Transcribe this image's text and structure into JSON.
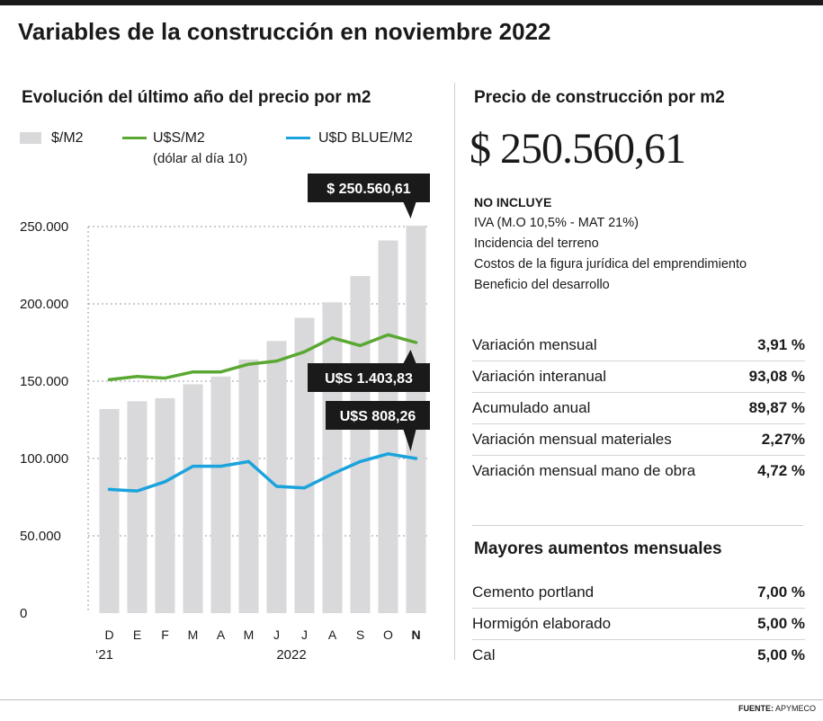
{
  "header": {
    "title": "Variables de la construcción en noviembre 2022"
  },
  "left": {
    "subtitle": "Evolución del último año del precio por m2",
    "legend": [
      {
        "label": "$/M2",
        "color": "#d9d9db"
      },
      {
        "label": "U$S/M2",
        "note": "(dólar al día 10)",
        "color": "#5aa832"
      },
      {
        "label": "U$D BLUE/M2",
        "color": "#1aa3dc"
      }
    ]
  },
  "chart_data": {
    "type": "bar",
    "categories": [
      "D",
      "E",
      "F",
      "M",
      "A",
      "M",
      "J",
      "J",
      "A",
      "S",
      "O",
      "N"
    ],
    "year_labels": [
      "‘21",
      "2022"
    ],
    "yticks": [
      "250.000",
      "200.000",
      "150.000",
      "100.000",
      "50.000",
      "0"
    ],
    "ylim": [
      0,
      250000
    ],
    "grid": true,
    "series": [
      {
        "name": "$/M2",
        "type": "bar",
        "color": "#d9d9db",
        "values": [
          132000,
          137000,
          139000,
          148000,
          153000,
          164000,
          176000,
          191000,
          201000,
          218000,
          241000,
          250560.61
        ]
      },
      {
        "name": "U$S/M2",
        "type": "line",
        "color": "#5aa832",
        "values": [
          151000,
          153000,
          152000,
          156000,
          156000,
          161000,
          163000,
          169000,
          178000,
          173000,
          180000,
          175000
        ]
      },
      {
        "name": "U$D BLUE/M2",
        "type": "line",
        "color": "#1aa3dc",
        "values": [
          80000,
          79000,
          85000,
          95000,
          95000,
          98000,
          82000,
          81000,
          90000,
          98000,
          103000,
          100000
        ]
      }
    ],
    "callouts": [
      {
        "text": "$ 250.560,61",
        "series": 0
      },
      {
        "text": "U$S 1.403,83",
        "series": 1
      },
      {
        "text": "U$S 808,26",
        "series": 2
      }
    ]
  },
  "right": {
    "title": "Precio de construcción por m2",
    "price": "$ 250.560,61",
    "no_incluye_title": "NO INCLUYE",
    "no_incluye": [
      "IVA (M.O 10,5% - MAT 21%)",
      "Incidencia del terreno",
      "Costos de la figura jurídica del emprendimiento",
      "Beneficio del desarrollo"
    ],
    "variaciones": [
      {
        "label": "Variación mensual",
        "value": "3,91 %"
      },
      {
        "label": "Variación interanual",
        "value": "93,08 %"
      },
      {
        "label": "Acumulado anual",
        "value": "89,87 %"
      },
      {
        "label": "Variación mensual materiales",
        "value": "2,27%"
      },
      {
        "label": "Variación mensual mano de obra",
        "value": "4,72 %"
      }
    ],
    "aumentos_title": "Mayores aumentos mensuales",
    "aumentos": [
      {
        "label": "Cemento portland",
        "value": "7,00 %"
      },
      {
        "label": "Hormigón elaborado",
        "value": "5,00 %"
      },
      {
        "label": "Cal",
        "value": "5,00 %"
      }
    ]
  },
  "footer": {
    "source_label": "FUENTE:",
    "source_name": "APYMECO"
  }
}
